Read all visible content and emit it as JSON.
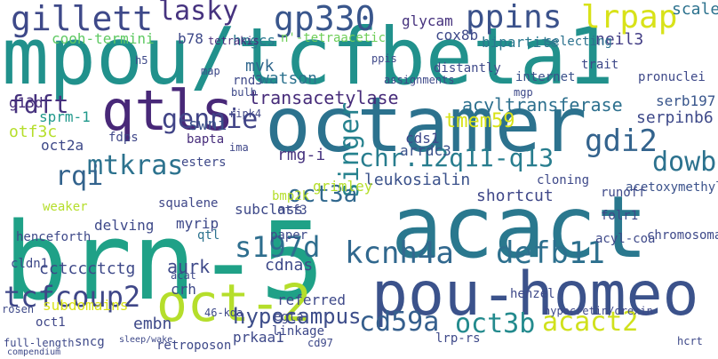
{
  "words": {
    "brn5": "brn-5",
    "mpou": "mpou/tcfbeta1",
    "acact": "acact",
    "octamer": "octamer",
    "pouhomeo": "pou-homeo",
    "oct2": "oct-2",
    "qtls": "qtls",
    "gillett": "gillett",
    "gp330": "gp330",
    "ppins": "ppins",
    "lrpap": "lrpap",
    "lasky": "lasky",
    "gennie": "gennie",
    "singer": "singer",
    "mtkras": "mtkras",
    "gdi2": "gdi2",
    "chr": "chr.12q11-q13",
    "kcnh4a": "kcnh4a",
    "defb11": "defb11",
    "tcfcoup2": "tcfcoup2",
    "cd59a": "cd59a",
    "oct3b": "oct3b",
    "acact2": "acact2",
    "s197d": "s197d",
    "fdft": "fdft",
    "rqi": "rqi",
    "dowbenko": "dowbenko",
    "hypocampus": "hypocampus",
    "oct3a": "oct3a",
    "cooh": "cooh-termini",
    "hmgcs": "hmgcs",
    "tetraacetic": "n'-tetraacetic",
    "cox8b": "cox8b",
    "glycam": "glycam",
    "b78": "b78",
    "tetrakis": "tetrakis",
    "neil3": "neil3",
    "bipartite": "bipartite",
    "scale": "scale",
    "selecting": "selecting",
    "mvk": "mvk",
    "rnd3": "rnd3",
    "watson": "watson",
    "transacetylase": "transacetylase",
    "acyltransferase": "acyltransferase",
    "tmem59": "tmem59",
    "serpinb6": "serpinb6",
    "serpinb6b": "serb197",
    "g13d": "g13d",
    "sprm1": "sprm-1",
    "otf3c": "otf3c",
    "oct2a": "oct2a",
    "fdps": "fdps",
    "bapta": "bapta",
    "swni": "swni",
    "ripk4": "ripk4",
    "cds1": "cds1",
    "arrdc3": "arrdc3",
    "rmgi": "rmg-i",
    "leukosialin": "leukosialin",
    "shortcut": "shortcut",
    "cloning": "cloning",
    "acetoxymethyl": "acetoxymethyl",
    "runoff": "runoff",
    "pronuclei": "pronuclei",
    "trait": "trait",
    "internet": "internet",
    "esters": "esters",
    "ima": "ima",
    "myrip": "myrip",
    "squalene": "squalene",
    "aurk": "aurk",
    "crh": "crh",
    "cctcc": "cctccctctg",
    "delving": "delving",
    "subclass": "subclass",
    "qtl": "qtl",
    "otf3": "otf3",
    "bmp2k": "bmp2k",
    "cdnas": "cdnas",
    "paper": "paper",
    "referred": "referred",
    "grimley": "grimley",
    "subdomains": "subdomains",
    "oct1": "oct1",
    "embn": "embn",
    "sncg": "sncg",
    "retroposon": "retroposon",
    "prkaa1": "prkaa1",
    "egta": "egta",
    "linkage": "linkage",
    "cd97": "cd97",
    "lrprs": "lrp-rs",
    "henzel": "henzel",
    "hypocretin": "hypocretin/orexin",
    "acat": "acat",
    "acylcoa": "acyl-coa",
    "folr1": "folr1",
    "chromosomal": "chromosomal",
    "hcrt": "hcrt",
    "henceforth": "henceforth",
    "cldn1": "cldn1",
    "weaker": "weaker",
    "rosen": "rosen",
    "fulllength": "full-length",
    "compendium": "compendium",
    "bulb": "bulb",
    "h5": "h5",
    "map": "map",
    "ppis": "ppis",
    "assignments": "assignments",
    "mgp": "mgp",
    "distantly": "distantly",
    "sleepwake": "sleep/wake",
    "s46kda": "46-kda"
  }
}
